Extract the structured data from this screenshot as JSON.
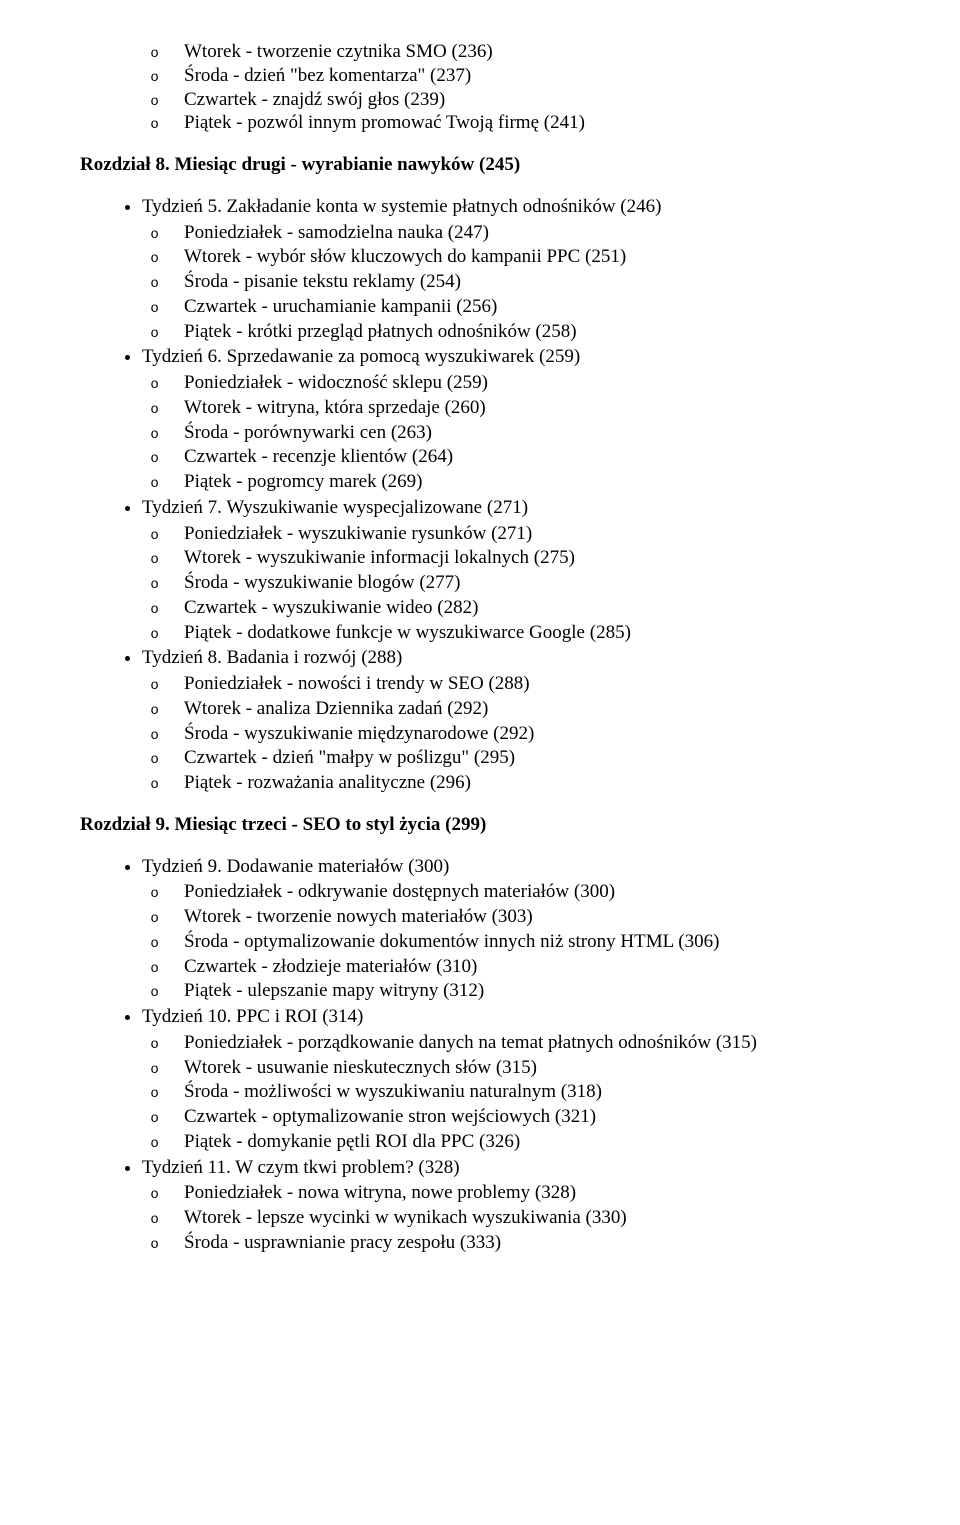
{
  "orphan_week4": [
    "Wtorek - tworzenie czytnika SMO (236)",
    "Środa - dzień \"bez komentarza\" (237)",
    "Czwartek - znajdź swój głos (239)",
    "Piątek - pozwól innym promować Twoją firmę (241)"
  ],
  "chapter8": {
    "title": "Rozdział 8. Miesiąc drugi - wyrabianie nawyków (245)",
    "weeks": [
      {
        "title": "Tydzień 5. Zakładanie konta w systemie płatnych odnośników (246)",
        "days": [
          "Poniedziałek - samodzielna nauka (247)",
          "Wtorek - wybór słów kluczowych do kampanii PPC (251)",
          "Środa - pisanie tekstu reklamy (254)",
          "Czwartek - uruchamianie kampanii (256)",
          "Piątek - krótki przegląd płatnych odnośników (258)"
        ]
      },
      {
        "title": "Tydzień 6. Sprzedawanie za pomocą wyszukiwarek (259)",
        "days": [
          "Poniedziałek - widoczność sklepu (259)",
          "Wtorek - witryna, która sprzedaje (260)",
          "Środa - porównywarki cen (263)",
          "Czwartek - recenzje klientów (264)",
          "Piątek - pogromcy marek (269)"
        ]
      },
      {
        "title": "Tydzień 7. Wyszukiwanie wyspecjalizowane (271)",
        "days": [
          "Poniedziałek - wyszukiwanie rysunków (271)",
          "Wtorek - wyszukiwanie informacji lokalnych (275)",
          "Środa - wyszukiwanie blogów (277)",
          "Czwartek - wyszukiwanie wideo (282)",
          "Piątek - dodatkowe funkcje w wyszukiwarce Google (285)"
        ]
      },
      {
        "title": "Tydzień 8. Badania i rozwój (288)",
        "days": [
          "Poniedziałek - nowości i trendy w SEO (288)",
          "Wtorek - analiza Dziennika zadań (292)",
          "Środa - wyszukiwanie międzynarodowe (292)",
          "Czwartek - dzień \"małpy w poślizgu\" (295)",
          "Piątek - rozważania analityczne (296)"
        ]
      }
    ]
  },
  "chapter9": {
    "title": "Rozdział 9. Miesiąc trzeci - SEO to styl życia (299)",
    "weeks": [
      {
        "title": "Tydzień 9. Dodawanie materiałów (300)",
        "days": [
          "Poniedziałek - odkrywanie dostępnych materiałów (300)",
          "Wtorek - tworzenie nowych materiałów (303)",
          "Środa - optymalizowanie dokumentów innych niż strony HTML (306)",
          "Czwartek - złodzieje materiałów (310)",
          "Piątek - ulepszanie mapy witryny (312)"
        ]
      },
      {
        "title": "Tydzień 10. PPC i ROI (314)",
        "days": [
          "Poniedziałek - porządkowanie danych na temat płatnych odnośników (315)",
          "Wtorek - usuwanie nieskutecznych słów (315)",
          "Środa - możliwości w wyszukiwaniu naturalnym (318)",
          "Czwartek - optymalizowanie stron wejściowych (321)",
          "Piątek - domykanie pętli ROI dla PPC (326)"
        ]
      },
      {
        "title": "Tydzień 11. W czym tkwi problem? (328)",
        "days": [
          "Poniedziałek - nowa witryna, nowe problemy (328)",
          "Wtorek - lepsze wycinki w wynikach wyszukiwania (330)",
          "Środa - usprawnianie pracy zespołu (333)"
        ]
      }
    ]
  }
}
